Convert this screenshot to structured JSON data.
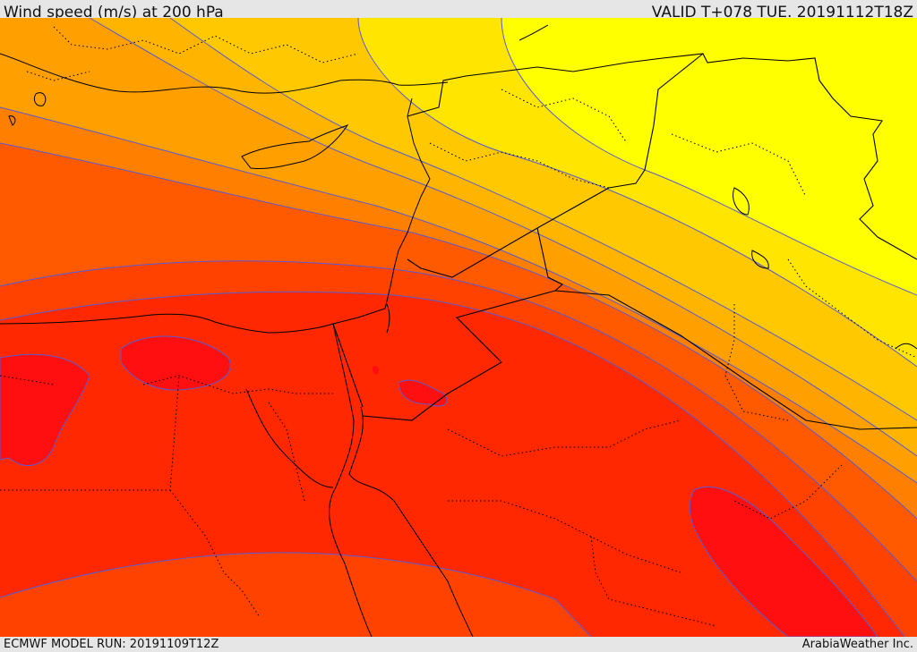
{
  "header": {
    "title": "Wind speed (m/s) at 200 hPa",
    "valid": "VALID T+078 TUE. 20191112T18Z"
  },
  "footer": {
    "model_run": "ECMWF MODEL RUN: 20191109T12Z",
    "credit": "ArabiaWeather Inc."
  },
  "colors": {
    "yellow": "#ffff00",
    "light_yellow": "#ffe500",
    "gold": "#ffc800",
    "amber": "#ffb400",
    "orange": "#ff9f00",
    "dark_orange": "#ff8000",
    "red_orange": "#ff5a00",
    "orange_red": "#ff4200",
    "red": "#ff2800",
    "deep_red": "#ff0f0f",
    "contour": "#5a5ad2",
    "border": "#000000"
  }
}
